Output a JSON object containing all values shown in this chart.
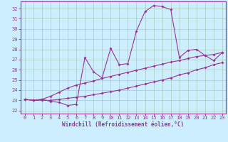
{
  "xlabel": "Windchill (Refroidissement éolien,°C)",
  "bg_color": "#cceeff",
  "grid_color": "#aaccbb",
  "line_color": "#993399",
  "spine_color": "#993399",
  "xlim": [
    -0.5,
    23.4
  ],
  "ylim": [
    21.7,
    32.7
  ],
  "yticks": [
    22,
    23,
    24,
    25,
    26,
    27,
    28,
    29,
    30,
    31,
    32
  ],
  "xticks": [
    0,
    1,
    2,
    3,
    4,
    5,
    6,
    7,
    8,
    9,
    10,
    11,
    12,
    13,
    14,
    15,
    16,
    17,
    18,
    19,
    20,
    21,
    22,
    23
  ],
  "line1_x": [
    0,
    1,
    2,
    3,
    4,
    5,
    6,
    7,
    8,
    9,
    10,
    11,
    12,
    13,
    14,
    15,
    16,
    17,
    18,
    19,
    20,
    21,
    22,
    23
  ],
  "line1_y": [
    23.1,
    23.0,
    23.1,
    22.9,
    22.8,
    22.5,
    22.6,
    27.2,
    25.8,
    25.2,
    28.1,
    26.5,
    26.6,
    29.8,
    31.7,
    32.3,
    32.2,
    31.9,
    27.2,
    27.9,
    28.0,
    27.4,
    26.9,
    27.7
  ],
  "line2_x": [
    0,
    1,
    2,
    3,
    4,
    5,
    6,
    7,
    8,
    9,
    10,
    11,
    12,
    13,
    14,
    15,
    16,
    17,
    18,
    19,
    20,
    21,
    22,
    23
  ],
  "line2_y": [
    23.1,
    23.0,
    23.1,
    23.4,
    23.8,
    24.2,
    24.5,
    24.7,
    24.9,
    25.15,
    25.35,
    25.55,
    25.75,
    25.95,
    26.15,
    26.35,
    26.55,
    26.75,
    26.9,
    27.1,
    27.3,
    27.4,
    27.5,
    27.7
  ],
  "line3_x": [
    0,
    1,
    2,
    3,
    4,
    5,
    6,
    7,
    8,
    9,
    10,
    11,
    12,
    13,
    14,
    15,
    16,
    17,
    18,
    19,
    20,
    21,
    22,
    23
  ],
  "line3_y": [
    23.1,
    23.0,
    23.0,
    23.0,
    23.1,
    23.2,
    23.3,
    23.4,
    23.55,
    23.7,
    23.85,
    24.0,
    24.2,
    24.4,
    24.6,
    24.8,
    25.0,
    25.2,
    25.5,
    25.7,
    26.0,
    26.2,
    26.5,
    26.7
  ],
  "marker_size": 2.0,
  "line_width": 0.8,
  "tick_fontsize": 5.0,
  "xlabel_fontsize": 5.5
}
